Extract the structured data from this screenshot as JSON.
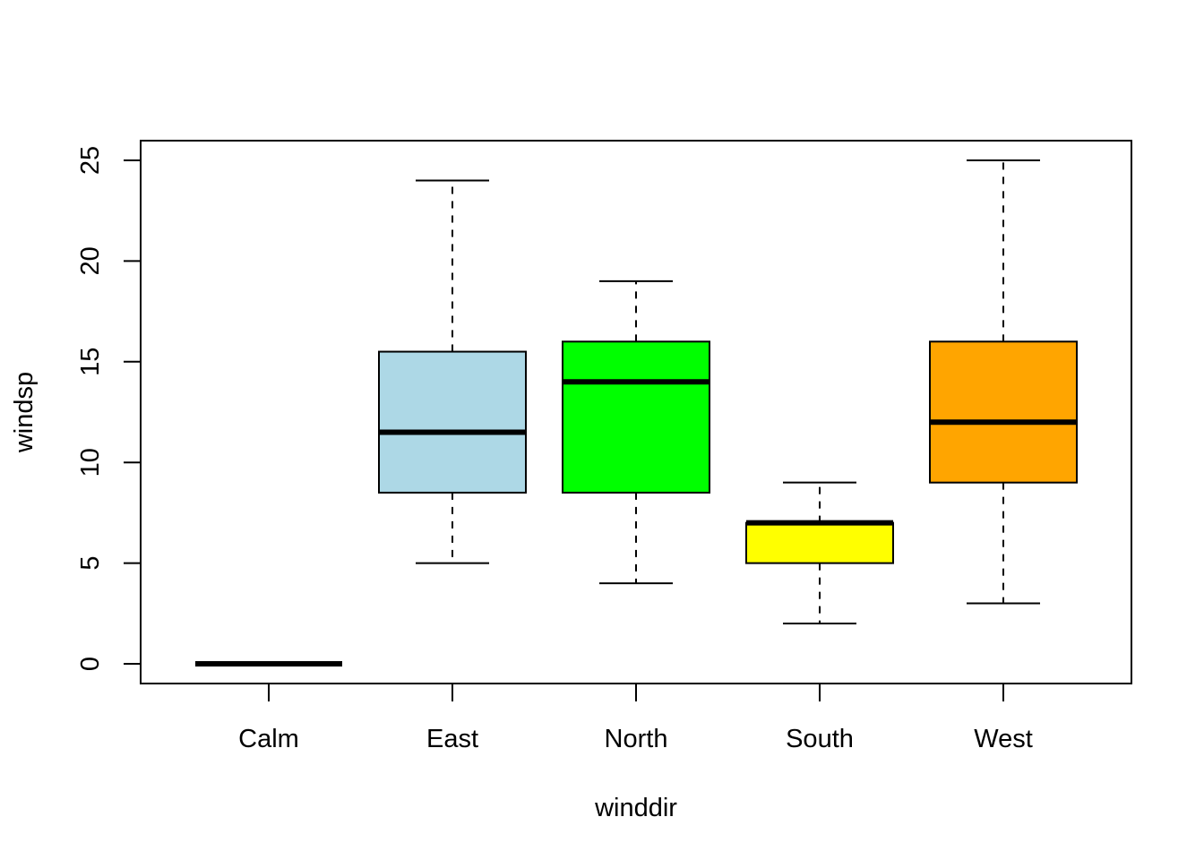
{
  "chart_data": {
    "type": "boxplot",
    "title": "",
    "xlabel": "winddir",
    "ylabel": "windsp",
    "ylim": [
      -1,
      26
    ],
    "yticks": [
      0,
      5,
      10,
      15,
      20,
      25
    ],
    "grid": false,
    "legend": "none",
    "categories": [
      "Calm",
      "East",
      "North",
      "South",
      "West"
    ],
    "boxes": [
      {
        "category": "Calm",
        "min": 0,
        "q1": 0,
        "median": 0,
        "q3": 0,
        "max": 0,
        "color": "#000000"
      },
      {
        "category": "East",
        "min": 5,
        "q1": 8.5,
        "median": 11.5,
        "q3": 15.5,
        "max": 24,
        "color": "#ADD8E6"
      },
      {
        "category": "North",
        "min": 4,
        "q1": 8.5,
        "median": 14,
        "q3": 16,
        "max": 19,
        "color": "#00FF00"
      },
      {
        "category": "South",
        "min": 2,
        "q1": 5,
        "median": 7,
        "q3": 7,
        "max": 9,
        "color": "#FFFF00"
      },
      {
        "category": "West",
        "min": 3,
        "q1": 9,
        "median": 12,
        "q3": 16,
        "max": 25,
        "color": "#FFA500"
      }
    ]
  }
}
